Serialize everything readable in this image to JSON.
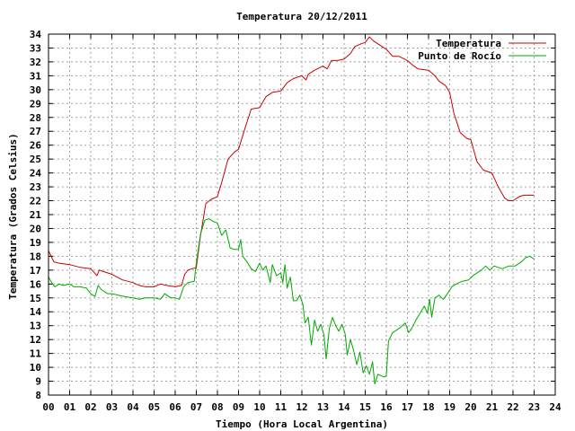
{
  "chart_data": {
    "type": "line",
    "title": "Temperatura 20/12/2011",
    "xlabel": "Tiempo (Hora Local Argentina)",
    "ylabel": "Temperatura (Grados Celsius)",
    "xlim": [
      0,
      24
    ],
    "ylim": [
      8,
      34
    ],
    "grid": true,
    "legend_position": "top-right",
    "x_ticks": [
      {
        "value": 0,
        "label": "00"
      },
      {
        "value": 1,
        "label": "01"
      },
      {
        "value": 2,
        "label": "02"
      },
      {
        "value": 3,
        "label": "03"
      },
      {
        "value": 4,
        "label": "04"
      },
      {
        "value": 5,
        "label": "05"
      },
      {
        "value": 6,
        "label": "06"
      },
      {
        "value": 7,
        "label": "07"
      },
      {
        "value": 8,
        "label": "08"
      },
      {
        "value": 9,
        "label": "09"
      },
      {
        "value": 10,
        "label": "10"
      },
      {
        "value": 11,
        "label": "11"
      },
      {
        "value": 12,
        "label": "12"
      },
      {
        "value": 13,
        "label": "13"
      },
      {
        "value": 14,
        "label": "14"
      },
      {
        "value": 15,
        "label": "15"
      },
      {
        "value": 16,
        "label": "16"
      },
      {
        "value": 17,
        "label": "17"
      },
      {
        "value": 18,
        "label": "18"
      },
      {
        "value": 19,
        "label": "19"
      },
      {
        "value": 20,
        "label": "20"
      },
      {
        "value": 21,
        "label": "21"
      },
      {
        "value": 22,
        "label": "22"
      },
      {
        "value": 23,
        "label": "23"
      },
      {
        "value": 24,
        "label": "24"
      }
    ],
    "y_ticks": [
      8,
      9,
      10,
      11,
      12,
      13,
      14,
      15,
      16,
      17,
      18,
      19,
      20,
      21,
      22,
      23,
      24,
      25,
      26,
      27,
      28,
      29,
      30,
      31,
      32,
      33,
      34
    ],
    "series": [
      {
        "name": "Temperatura",
        "color": "#cc0000",
        "points": [
          [
            0.0,
            18.4
          ],
          [
            0.25,
            17.6
          ],
          [
            0.5,
            17.5
          ],
          [
            1.0,
            17.4
          ],
          [
            1.5,
            17.2
          ],
          [
            2.0,
            17.1
          ],
          [
            2.3,
            16.6
          ],
          [
            2.4,
            17.0
          ],
          [
            2.6,
            16.9
          ],
          [
            3.0,
            16.7
          ],
          [
            3.5,
            16.3
          ],
          [
            4.0,
            16.1
          ],
          [
            4.3,
            15.9
          ],
          [
            4.6,
            15.8
          ],
          [
            5.0,
            15.8
          ],
          [
            5.3,
            16.0
          ],
          [
            5.6,
            15.9
          ],
          [
            6.0,
            15.8
          ],
          [
            6.3,
            15.9
          ],
          [
            6.45,
            16.7
          ],
          [
            6.6,
            17.0
          ],
          [
            7.0,
            17.2
          ],
          [
            7.2,
            19.5
          ],
          [
            7.45,
            21.8
          ],
          [
            7.7,
            22.1
          ],
          [
            8.0,
            22.3
          ],
          [
            8.2,
            23.3
          ],
          [
            8.5,
            25.0
          ],
          [
            8.8,
            25.5
          ],
          [
            9.0,
            25.7
          ],
          [
            9.3,
            27.2
          ],
          [
            9.6,
            28.6
          ],
          [
            10.0,
            28.7
          ],
          [
            10.3,
            29.5
          ],
          [
            10.6,
            29.8
          ],
          [
            11.0,
            29.9
          ],
          [
            11.3,
            30.5
          ],
          [
            11.6,
            30.8
          ],
          [
            12.0,
            31.0
          ],
          [
            12.2,
            30.7
          ],
          [
            12.3,
            31.1
          ],
          [
            12.6,
            31.4
          ],
          [
            13.0,
            31.7
          ],
          [
            13.2,
            31.5
          ],
          [
            13.4,
            32.1
          ],
          [
            13.7,
            32.1
          ],
          [
            14.0,
            32.2
          ],
          [
            14.3,
            32.6
          ],
          [
            14.5,
            33.1
          ],
          [
            14.8,
            33.3
          ],
          [
            15.0,
            33.4
          ],
          [
            15.2,
            33.8
          ],
          [
            15.4,
            33.5
          ],
          [
            15.6,
            33.3
          ],
          [
            15.8,
            33.1
          ],
          [
            16.0,
            32.9
          ],
          [
            16.3,
            32.4
          ],
          [
            16.6,
            32.4
          ],
          [
            17.0,
            32.1
          ],
          [
            17.3,
            31.7
          ],
          [
            17.5,
            31.5
          ],
          [
            18.0,
            31.4
          ],
          [
            18.3,
            31.0
          ],
          [
            18.5,
            30.6
          ],
          [
            18.8,
            30.3
          ],
          [
            19.0,
            29.8
          ],
          [
            19.2,
            28.3
          ],
          [
            19.5,
            26.9
          ],
          [
            19.8,
            26.5
          ],
          [
            20.0,
            26.4
          ],
          [
            20.3,
            24.8
          ],
          [
            20.6,
            24.2
          ],
          [
            21.0,
            24.0
          ],
          [
            21.3,
            23.0
          ],
          [
            21.6,
            22.2
          ],
          [
            21.8,
            22.0
          ],
          [
            22.0,
            22.0
          ],
          [
            22.3,
            22.3
          ],
          [
            22.5,
            22.4
          ],
          [
            23.0,
            22.4
          ]
        ]
      },
      {
        "name": "Punto de Rocío",
        "color": "#00aa00",
        "points": [
          [
            0.0,
            16.5
          ],
          [
            0.15,
            16.1
          ],
          [
            0.3,
            15.8
          ],
          [
            0.5,
            16.0
          ],
          [
            0.7,
            15.9
          ],
          [
            1.0,
            16.0
          ],
          [
            1.2,
            15.8
          ],
          [
            1.5,
            15.8
          ],
          [
            1.8,
            15.7
          ],
          [
            2.0,
            15.3
          ],
          [
            2.2,
            15.1
          ],
          [
            2.35,
            15.9
          ],
          [
            2.5,
            15.6
          ],
          [
            2.8,
            15.3
          ],
          [
            3.0,
            15.3
          ],
          [
            3.3,
            15.2
          ],
          [
            3.6,
            15.1
          ],
          [
            4.0,
            15.0
          ],
          [
            4.3,
            14.9
          ],
          [
            4.6,
            15.0
          ],
          [
            5.0,
            15.0
          ],
          [
            5.3,
            14.9
          ],
          [
            5.5,
            15.3
          ],
          [
            5.8,
            15.0
          ],
          [
            6.0,
            15.0
          ],
          [
            6.2,
            14.9
          ],
          [
            6.4,
            15.8
          ],
          [
            6.6,
            16.1
          ],
          [
            6.9,
            16.2
          ],
          [
            7.0,
            17.5
          ],
          [
            7.2,
            19.6
          ],
          [
            7.4,
            20.6
          ],
          [
            7.6,
            20.7
          ],
          [
            7.8,
            20.5
          ],
          [
            8.0,
            20.4
          ],
          [
            8.2,
            19.5
          ],
          [
            8.4,
            19.9
          ],
          [
            8.6,
            18.6
          ],
          [
            8.8,
            18.5
          ],
          [
            9.0,
            18.5
          ],
          [
            9.1,
            19.2
          ],
          [
            9.2,
            18.0
          ],
          [
            9.4,
            17.6
          ],
          [
            9.6,
            17.1
          ],
          [
            9.8,
            16.9
          ],
          [
            10.0,
            17.5
          ],
          [
            10.15,
            17.0
          ],
          [
            10.3,
            17.3
          ],
          [
            10.5,
            16.1
          ],
          [
            10.6,
            17.4
          ],
          [
            10.8,
            16.6
          ],
          [
            11.0,
            16.8
          ],
          [
            11.1,
            16.1
          ],
          [
            11.2,
            17.4
          ],
          [
            11.3,
            15.7
          ],
          [
            11.45,
            16.5
          ],
          [
            11.6,
            14.8
          ],
          [
            11.75,
            14.8
          ],
          [
            11.9,
            15.2
          ],
          [
            12.05,
            14.5
          ],
          [
            12.15,
            13.2
          ],
          [
            12.3,
            13.6
          ],
          [
            12.45,
            11.6
          ],
          [
            12.6,
            13.4
          ],
          [
            12.75,
            12.6
          ],
          [
            12.9,
            13.1
          ],
          [
            13.05,
            12.3
          ],
          [
            13.15,
            10.6
          ],
          [
            13.3,
            12.8
          ],
          [
            13.45,
            13.6
          ],
          [
            13.6,
            13.0
          ],
          [
            13.75,
            12.6
          ],
          [
            13.9,
            13.1
          ],
          [
            14.05,
            12.4
          ],
          [
            14.15,
            10.9
          ],
          [
            14.3,
            12.0
          ],
          [
            14.45,
            11.2
          ],
          [
            14.6,
            10.2
          ],
          [
            14.75,
            11.1
          ],
          [
            14.9,
            9.6
          ],
          [
            15.05,
            10.1
          ],
          [
            15.2,
            9.5
          ],
          [
            15.35,
            10.4
          ],
          [
            15.45,
            8.8
          ],
          [
            15.6,
            9.5
          ],
          [
            15.75,
            9.4
          ],
          [
            15.9,
            9.3
          ],
          [
            16.0,
            9.4
          ],
          [
            16.1,
            11.9
          ],
          [
            16.3,
            12.5
          ],
          [
            16.5,
            12.7
          ],
          [
            16.7,
            12.9
          ],
          [
            16.9,
            13.2
          ],
          [
            17.05,
            12.5
          ],
          [
            17.2,
            12.8
          ],
          [
            17.4,
            13.4
          ],
          [
            17.6,
            13.9
          ],
          [
            17.8,
            14.4
          ],
          [
            17.95,
            13.9
          ],
          [
            18.05,
            14.9
          ],
          [
            18.15,
            13.6
          ],
          [
            18.3,
            15.0
          ],
          [
            18.5,
            15.2
          ],
          [
            18.7,
            14.9
          ],
          [
            18.9,
            15.3
          ],
          [
            19.1,
            15.8
          ],
          [
            19.3,
            16.0
          ],
          [
            19.6,
            16.2
          ],
          [
            19.9,
            16.3
          ],
          [
            20.1,
            16.6
          ],
          [
            20.3,
            16.8
          ],
          [
            20.5,
            17.0
          ],
          [
            20.7,
            17.3
          ],
          [
            20.9,
            17.0
          ],
          [
            21.1,
            17.3
          ],
          [
            21.3,
            17.2
          ],
          [
            21.5,
            17.1
          ],
          [
            21.8,
            17.3
          ],
          [
            22.1,
            17.3
          ],
          [
            22.4,
            17.6
          ],
          [
            22.6,
            17.9
          ],
          [
            22.8,
            18.0
          ],
          [
            23.0,
            17.8
          ]
        ]
      }
    ]
  }
}
